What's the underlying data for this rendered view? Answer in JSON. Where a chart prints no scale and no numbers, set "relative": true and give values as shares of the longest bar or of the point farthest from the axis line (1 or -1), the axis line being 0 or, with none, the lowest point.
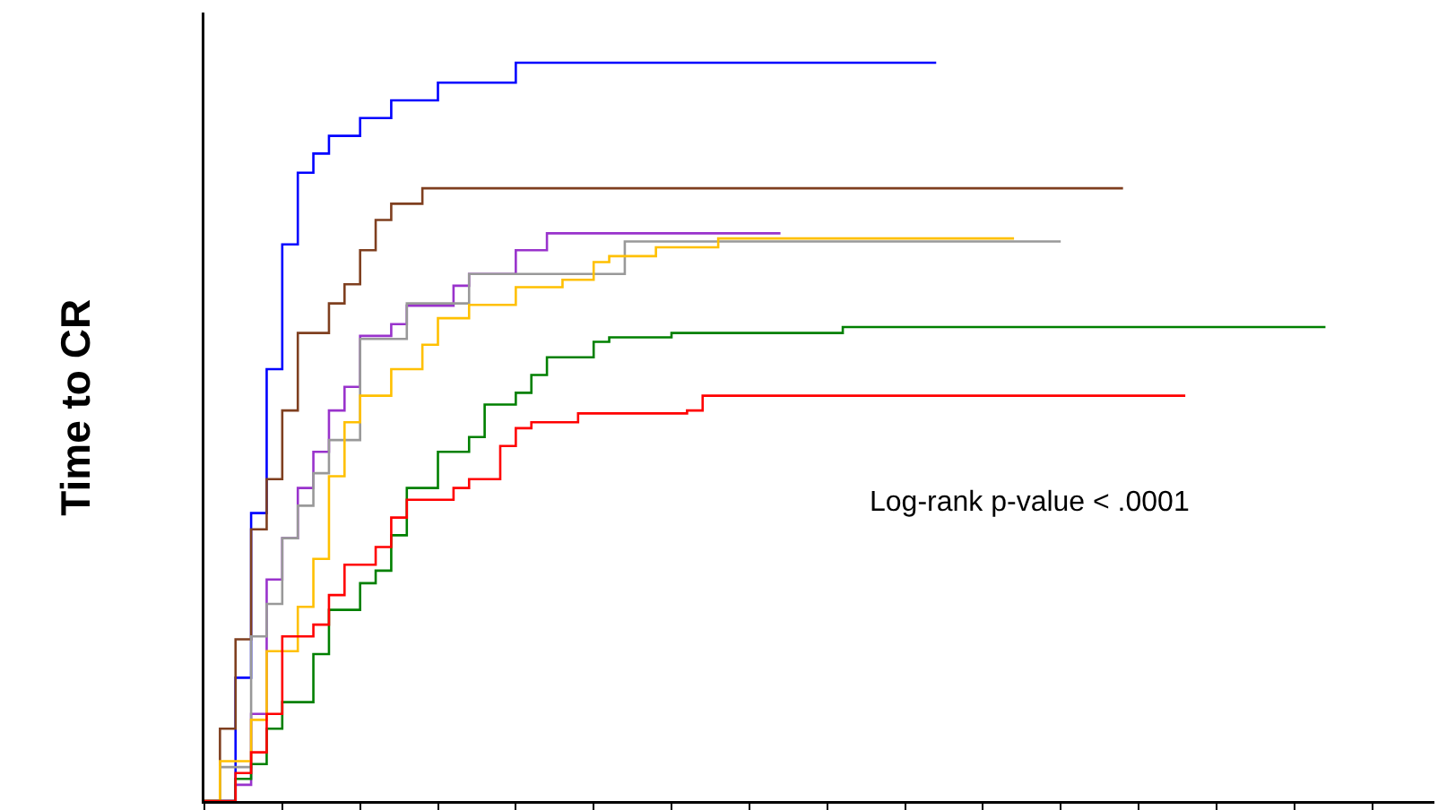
{
  "chart_data": {
    "type": "step",
    "relative": true,
    "ylabel": "Time to CR",
    "annotations": [
      "Log-rank p-value < .0001"
    ],
    "grid": false,
    "line_style": "solid",
    "categories": [
      null,
      null,
      null,
      null,
      null,
      null,
      null,
      null,
      null,
      null,
      null,
      null,
      null,
      null,
      null,
      null,
      null,
      null,
      null,
      null,
      null,
      null,
      null,
      null,
      null,
      null,
      null,
      null,
      null,
      null,
      null,
      null,
      null,
      null,
      null,
      null,
      null,
      null,
      null,
      null,
      null,
      null,
      null,
      null,
      null,
      null,
      null,
      null,
      null,
      null,
      null,
      null,
      null,
      null,
      null,
      null,
      null,
      null,
      null,
      null,
      null,
      null,
      null,
      null,
      null,
      null,
      null,
      null,
      null,
      null,
      null,
      null,
      null,
      null,
      null,
      null,
      null,
      null,
      null,
      null
    ],
    "series": [
      {
        "color": "#0000ff",
        "values": [
          0,
          0,
          0.167,
          0.39,
          0.585,
          0.754,
          0.851,
          0.877,
          0.901,
          0.901,
          0.925,
          0.925,
          0.949,
          0.949,
          0.949,
          0.973,
          0.973,
          0.973,
          0.973,
          0.973,
          1,
          1,
          1,
          1,
          1,
          1,
          1,
          1,
          1,
          1,
          1,
          1,
          1,
          1,
          1,
          1,
          1,
          1,
          1,
          1,
          1,
          1,
          1,
          1,
          1,
          1,
          1,
          1,
          null,
          null,
          null,
          null,
          null,
          null,
          null,
          null,
          null,
          null,
          null,
          null,
          null,
          null,
          null,
          null,
          null,
          null,
          null,
          null,
          null,
          null,
          null,
          null,
          null,
          null,
          null,
          null,
          null,
          null,
          null,
          null
        ]
      },
      {
        "color": "#7f3f1f",
        "values": [
          0,
          0.098,
          0.219,
          0.368,
          0.436,
          0.529,
          0.634,
          0.634,
          0.674,
          0.7,
          0.746,
          0.787,
          0.809,
          0.809,
          0.83,
          0.83,
          0.83,
          0.83,
          0.83,
          0.83,
          0.83,
          0.83,
          0.83,
          0.83,
          0.83,
          0.83,
          0.83,
          0.83,
          0.83,
          0.83,
          0.83,
          0.83,
          0.83,
          0.83,
          0.83,
          0.83,
          0.83,
          0.83,
          0.83,
          0.83,
          0.83,
          0.83,
          0.83,
          0.83,
          0.83,
          0.83,
          0.83,
          0.83,
          0.83,
          0.83,
          0.83,
          0.83,
          0.83,
          0.83,
          0.83,
          0.83,
          0.83,
          0.83,
          0.83,
          0.83,
          null,
          null,
          null,
          null,
          null,
          null,
          null,
          null,
          null,
          null,
          null,
          null,
          null,
          null,
          null,
          null,
          null,
          null,
          null,
          null
        ]
      },
      {
        "color": "#9933cc",
        "values": [
          0,
          0,
          0.022,
          0.118,
          0.3,
          0.356,
          0.424,
          0.473,
          0.529,
          0.561,
          0.63,
          0.63,
          0.646,
          0.671,
          0.671,
          0.671,
          0.698,
          0.714,
          0.714,
          0.714,
          0.746,
          0.746,
          0.769,
          0.769,
          0.769,
          0.769,
          0.769,
          0.769,
          0.769,
          0.769,
          0.769,
          0.769,
          0.769,
          0.769,
          0.769,
          0.769,
          0.769,
          0.769,
          null,
          null,
          null,
          null,
          null,
          null,
          null,
          null,
          null,
          null,
          null,
          null,
          null,
          null,
          null,
          null,
          null,
          null,
          null,
          null,
          null,
          null,
          null,
          null,
          null,
          null,
          null,
          null,
          null,
          null,
          null,
          null,
          null,
          null,
          null,
          null,
          null,
          null,
          null,
          null,
          null,
          null
        ]
      },
      {
        "color": "#999999",
        "values": [
          0,
          0.046,
          0.046,
          0.223,
          0.267,
          0.356,
          0.4,
          0.444,
          0.489,
          0.489,
          0.626,
          0.626,
          0.626,
          0.674,
          0.674,
          0.674,
          0.674,
          0.714,
          0.714,
          0.714,
          0.714,
          0.714,
          0.714,
          0.714,
          0.714,
          0.714,
          0.714,
          0.758,
          0.758,
          0.758,
          0.758,
          0.758,
          0.758,
          0.758,
          0.758,
          0.758,
          0.758,
          0.758,
          0.758,
          0.758,
          0.758,
          0.758,
          0.758,
          0.758,
          0.758,
          0.758,
          0.758,
          0.758,
          0.758,
          0.758,
          0.758,
          0.758,
          0.758,
          0.758,
          0.758,
          0.758,
          null,
          null,
          null,
          null,
          null,
          null,
          null,
          null,
          null,
          null,
          null,
          null,
          null,
          null,
          null,
          null,
          null,
          null,
          null,
          null,
          null,
          null,
          null,
          null
        ]
      },
      {
        "color": "#ffc000",
        "values": [
          0,
          0.054,
          0.054,
          0.11,
          0.203,
          0.203,
          0.263,
          0.328,
          0.44,
          0.513,
          0.549,
          0.549,
          0.585,
          0.585,
          0.618,
          0.654,
          0.654,
          0.672,
          0.672,
          0.672,
          0.696,
          0.696,
          0.696,
          0.706,
          0.706,
          0.73,
          0.738,
          0.738,
          0.738,
          0.75,
          0.75,
          0.75,
          0.75,
          0.762,
          0.762,
          0.762,
          0.762,
          0.762,
          0.762,
          0.762,
          0.762,
          0.762,
          0.762,
          0.762,
          0.762,
          0.762,
          0.762,
          0.762,
          0.762,
          0.762,
          0.762,
          0.762,
          0.762,
          null,
          null,
          null,
          null,
          null,
          null,
          null,
          null,
          null,
          null,
          null,
          null,
          null,
          null,
          null,
          null,
          null,
          null,
          null,
          null,
          null,
          null,
          null,
          null,
          null,
          null,
          null
        ]
      },
      {
        "color": "#008000",
        "values": [
          0,
          0,
          0.03,
          0.05,
          0.098,
          0.134,
          0.134,
          0.199,
          0.259,
          0.259,
          0.295,
          0.312,
          0.36,
          0.424,
          0.424,
          0.473,
          0.473,
          0.493,
          0.537,
          0.537,
          0.553,
          0.577,
          0.601,
          0.601,
          0.601,
          0.622,
          0.628,
          0.628,
          0.628,
          0.628,
          0.634,
          0.634,
          0.634,
          0.634,
          0.634,
          0.634,
          0.634,
          0.634,
          0.634,
          0.634,
          0.634,
          0.642,
          0.642,
          0.642,
          0.642,
          0.642,
          0.642,
          0.642,
          0.642,
          0.642,
          0.642,
          0.642,
          0.642,
          0.642,
          0.642,
          0.642,
          0.642,
          0.642,
          0.642,
          0.642,
          0.642,
          0.642,
          0.642,
          0.642,
          0.642,
          0.642,
          0.642,
          0.642,
          0.642,
          0.642,
          0.642,
          0.642,
          0.642,
          null,
          null,
          null,
          null,
          null,
          null,
          null
        ]
      },
      {
        "color": "#ff0000",
        "values": [
          0,
          0,
          0.038,
          0.066,
          0.118,
          0.223,
          0.223,
          0.239,
          0.279,
          0.32,
          0.32,
          0.344,
          0.384,
          0.408,
          0.408,
          0.408,
          0.424,
          0.436,
          0.436,
          0.481,
          0.505,
          0.513,
          0.513,
          0.513,
          0.525,
          0.525,
          0.525,
          0.525,
          0.525,
          0.525,
          0.525,
          0.529,
          0.549,
          0.549,
          0.549,
          0.549,
          0.549,
          0.549,
          0.549,
          0.549,
          0.549,
          0.549,
          0.549,
          0.549,
          0.549,
          0.549,
          0.549,
          0.549,
          0.549,
          0.549,
          0.549,
          0.549,
          0.549,
          0.549,
          0.549,
          0.549,
          0.549,
          0.549,
          0.549,
          0.549,
          0.549,
          0.549,
          0.549,
          0.549,
          null,
          null,
          null,
          null,
          null,
          null,
          null,
          null,
          null,
          null,
          null,
          null,
          null,
          null,
          null,
          null
        ]
      }
    ]
  }
}
